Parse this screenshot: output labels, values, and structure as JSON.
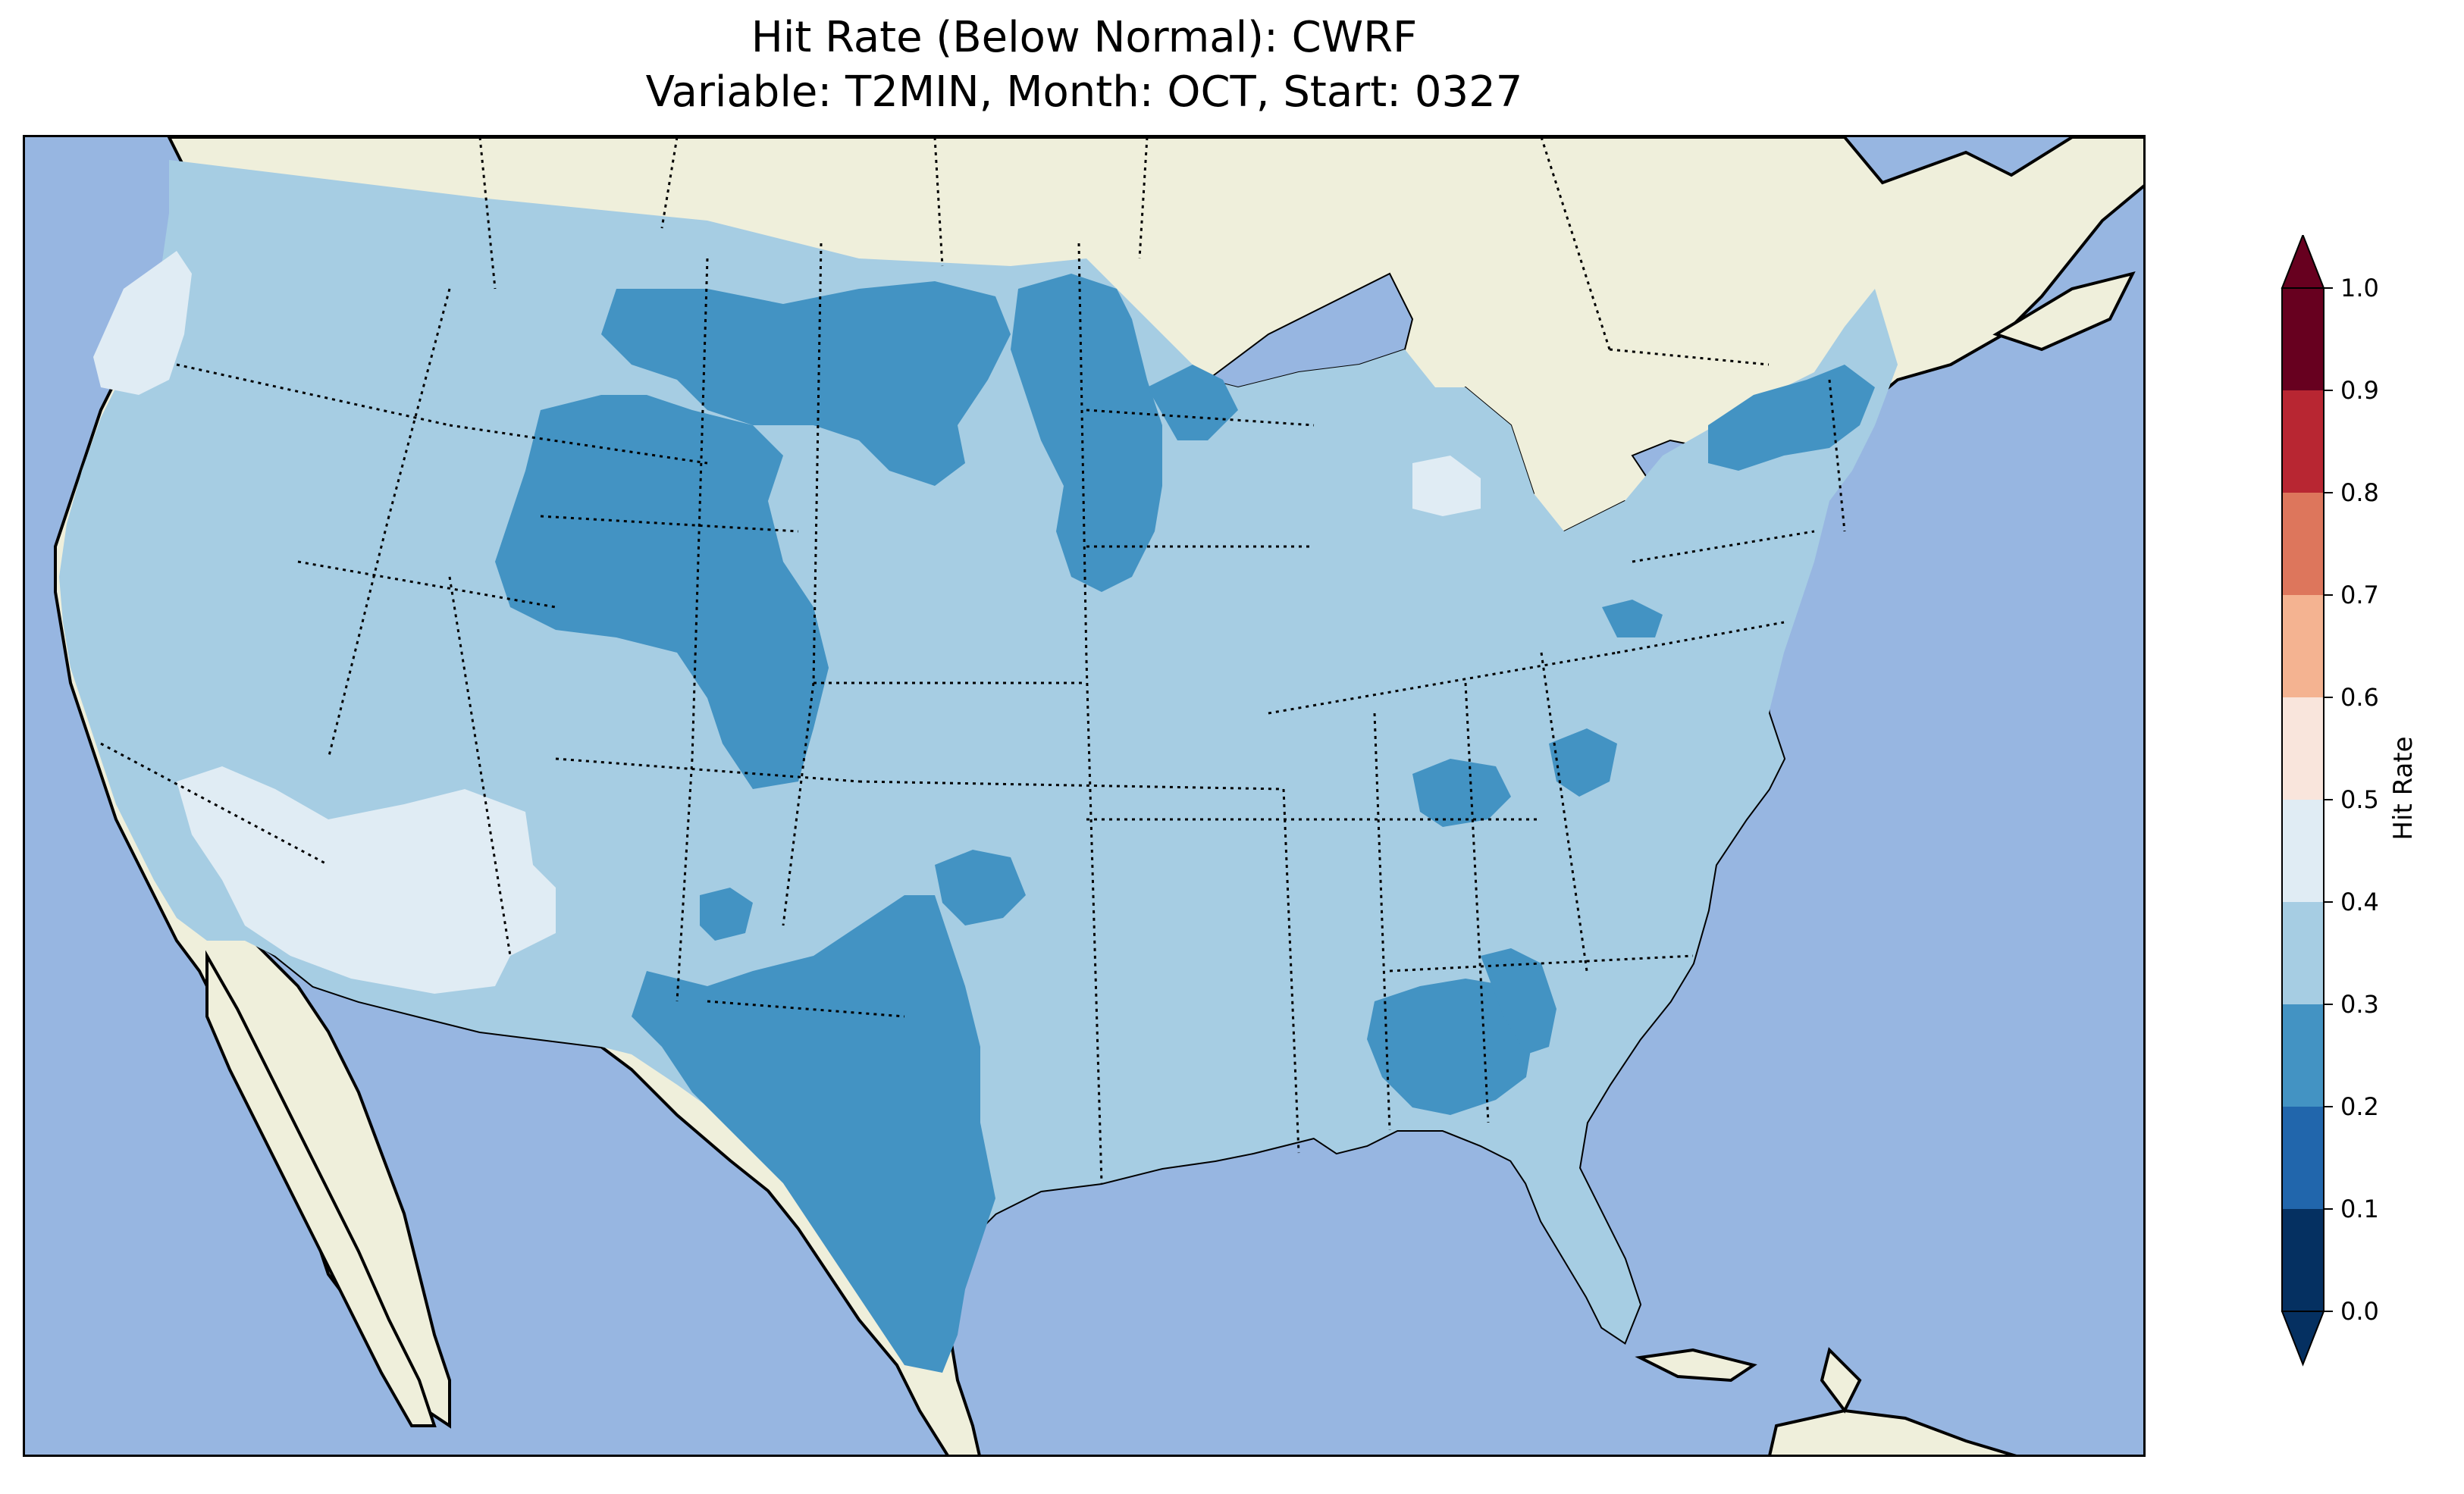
{
  "title": {
    "line1": "Hit Rate (Below Normal): CWRF",
    "line2": "Variable: T2MIN, Month: OCT, Start: 0327"
  },
  "colors": {
    "ocean": "#97b6e1",
    "land": "#efefdb",
    "lakes": "#97b6e1"
  },
  "colorbar": {
    "label": "Hit Rate",
    "ticks": [
      "0.0",
      "0.1",
      "0.2",
      "0.3",
      "0.4",
      "0.5",
      "0.6",
      "0.7",
      "0.8",
      "0.9",
      "1.0"
    ],
    "bins": [
      {
        "from": 0.0,
        "to": 0.1,
        "color": "#053061"
      },
      {
        "from": 0.1,
        "to": 0.2,
        "color": "#2166ac"
      },
      {
        "from": 0.2,
        "to": 0.3,
        "color": "#4393c3"
      },
      {
        "from": 0.3,
        "to": 0.4,
        "color": "#a6cde3"
      },
      {
        "from": 0.4,
        "to": 0.5,
        "color": "#e0ecf4"
      },
      {
        "from": 0.5,
        "to": 0.6,
        "color": "#f9e5dc"
      },
      {
        "from": 0.6,
        "to": 0.7,
        "color": "#f4b391"
      },
      {
        "from": 0.7,
        "to": 0.8,
        "color": "#dd765c"
      },
      {
        "from": 0.8,
        "to": 0.9,
        "color": "#b82632"
      },
      {
        "from": 0.9,
        "to": 1.0,
        "color": "#67001f"
      }
    ],
    "extend_low_color": "#053061",
    "extend_high_color": "#67001f"
  },
  "regions": [
    {
      "name": "conus-base",
      "bin": "0.3-0.4"
    },
    {
      "name": "pacific-northwest-coast",
      "bin": "0.4-0.5"
    },
    {
      "name": "southwest-desert",
      "bin": "0.4-0.5"
    },
    {
      "name": "michigan-lower-peninsula",
      "bin": "0.4-0.5"
    },
    {
      "name": "northern-plains",
      "bin": "0.2-0.3"
    },
    {
      "name": "wyoming-colorado",
      "bin": "0.2-0.3"
    },
    {
      "name": "texas",
      "bin": "0.2-0.3"
    },
    {
      "name": "minnesota",
      "bin": "0.2-0.3"
    },
    {
      "name": "upstate-new-york",
      "bin": "0.2-0.3"
    },
    {
      "name": "alabama-mississippi",
      "bin": "0.2-0.3"
    },
    {
      "name": "kentucky-tennessee",
      "bin": "0.2-0.3"
    }
  ]
}
